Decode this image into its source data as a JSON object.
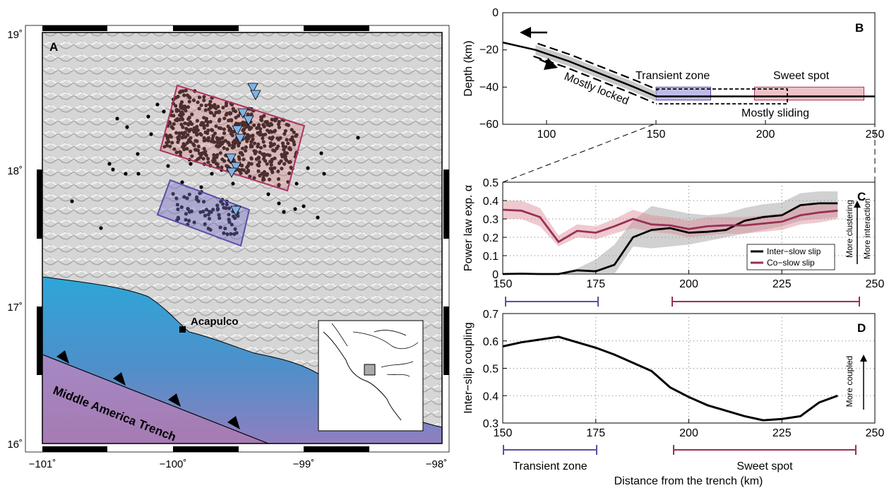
{
  "chart_data": [
    {
      "panel": "A",
      "type": "map",
      "x_ticks": [
        "−101˚",
        "−100˚",
        "−99˚",
        "−98˚"
      ],
      "y_ticks": [
        "19˚",
        "18˚",
        "17˚",
        "16˚"
      ],
      "xlim": [
        -101,
        -98
      ],
      "ylim": [
        16,
        19
      ],
      "labels": {
        "city": "Acapulco",
        "trench": "Middle America Trench"
      },
      "colors": {
        "sweet_box": "#b03060",
        "transient_box": "#5a4fa8",
        "ocean": "#3aa8dc",
        "trench_zone": "#b080b0",
        "land": "#d8d8d8",
        "triangle": "#7fb3e6"
      },
      "earthquake_count_sweet": 520,
      "earthquake_count_transient": 70,
      "tremor_stations": 10
    },
    {
      "panel": "B",
      "type": "line",
      "xlim": [
        80,
        250
      ],
      "ylim": [
        -60,
        0
      ],
      "xticks": [
        "100",
        "150",
        "200",
        "250"
      ],
      "yticks": [
        "0",
        "−20",
        "−40",
        "−60"
      ],
      "ylabel": "Depth (km)",
      "annotations": {
        "locked": "Mostly locked",
        "transient": "Transient zone",
        "sweet": "Sweet spot",
        "sliding": "Mostly sliding"
      },
      "slab_profile": {
        "x": [
          80,
          95,
          110,
          125,
          140,
          150,
          155,
          250
        ],
        "y": [
          -16,
          -20,
          -26,
          -33,
          -40,
          -45,
          -45,
          -45
        ]
      },
      "transient_zone": [
        150,
        175
      ],
      "sweet_spot": [
        195,
        245
      ]
    },
    {
      "panel": "C",
      "type": "line",
      "xlim": [
        150,
        250
      ],
      "ylim": [
        0,
        0.5
      ],
      "xticks": [
        "150",
        "175",
        "200",
        "225",
        "250"
      ],
      "yticks": [
        "0",
        "0.1",
        "0.2",
        "0.3",
        "0.4",
        "0.5"
      ],
      "ylabel": "Power law exp. α",
      "side_label_1": "More clustering",
      "side_label_2": "More interaction",
      "series": [
        {
          "name": "Inter−slow slip",
          "color": "#000000",
          "x": [
            150,
            155,
            160,
            165,
            170,
            175,
            180,
            185,
            190,
            195,
            200,
            205,
            210,
            215,
            220,
            225,
            230,
            235,
            240
          ],
          "y": [
            0.0,
            0.002,
            0.0,
            0.0,
            0.02,
            0.015,
            0.05,
            0.2,
            0.24,
            0.25,
            0.225,
            0.23,
            0.24,
            0.29,
            0.31,
            0.32,
            0.375,
            0.385,
            0.385
          ],
          "lower": [
            0.0,
            0.0,
            0.0,
            0.0,
            0.0,
            0.0,
            0.0,
            0.15,
            0.14,
            0.15,
            0.16,
            0.18,
            0.2,
            0.22,
            0.24,
            0.26,
            0.29,
            0.3,
            0.31
          ],
          "upper": [
            0.0,
            0.004,
            0.0,
            0.005,
            0.03,
            0.08,
            0.16,
            0.29,
            0.37,
            0.35,
            0.33,
            0.32,
            0.33,
            0.36,
            0.38,
            0.39,
            0.44,
            0.45,
            0.45
          ]
        },
        {
          "name": "Co−slow slip",
          "color": "#9b2f55",
          "x": [
            150,
            155,
            160,
            165,
            170,
            175,
            180,
            185,
            190,
            195,
            200,
            205,
            210,
            215,
            220,
            225,
            230,
            235,
            240
          ],
          "y": [
            0.35,
            0.345,
            0.31,
            0.175,
            0.235,
            0.225,
            0.26,
            0.3,
            0.27,
            0.265,
            0.245,
            0.26,
            0.265,
            0.265,
            0.275,
            0.285,
            0.32,
            0.335,
            0.345
          ],
          "lower": [
            0.3,
            0.3,
            0.26,
            0.15,
            0.2,
            0.19,
            0.22,
            0.25,
            0.23,
            0.22,
            0.2,
            0.21,
            0.22,
            0.22,
            0.23,
            0.24,
            0.27,
            0.28,
            0.3
          ],
          "upper": [
            0.4,
            0.4,
            0.36,
            0.21,
            0.27,
            0.26,
            0.3,
            0.35,
            0.32,
            0.31,
            0.29,
            0.31,
            0.31,
            0.31,
            0.32,
            0.33,
            0.37,
            0.38,
            0.39
          ]
        }
      ],
      "legend_position": "bottom-right",
      "grid": true
    },
    {
      "panel": "D",
      "type": "line",
      "xlim": [
        150,
        250
      ],
      "ylim": [
        0.3,
        0.7
      ],
      "xticks": [
        "150",
        "175",
        "200",
        "225",
        "250"
      ],
      "yticks": [
        "0.3",
        "0.4",
        "0.5",
        "0.6",
        "0.7"
      ],
      "ylabel": "Inter−slip coupling",
      "xlabel": "Distance from the trench (km)",
      "side_label": "More coupled",
      "series": [
        {
          "color": "#000000",
          "x": [
            150,
            155,
            160,
            165,
            170,
            175,
            180,
            185,
            190,
            195,
            200,
            205,
            210,
            215,
            220,
            225,
            230,
            235,
            240
          ],
          "y": [
            0.58,
            0.595,
            0.605,
            0.615,
            0.595,
            0.575,
            0.55,
            0.52,
            0.49,
            0.43,
            0.395,
            0.365,
            0.345,
            0.325,
            0.31,
            0.315,
            0.325,
            0.375,
            0.4
          ]
        }
      ],
      "grid": true
    }
  ],
  "panel_labels": {
    "a": "A",
    "b": "B",
    "c": "C",
    "d": "D"
  },
  "zone_labels": {
    "transient": "Transient zone",
    "sweet": "Sweet spot"
  }
}
